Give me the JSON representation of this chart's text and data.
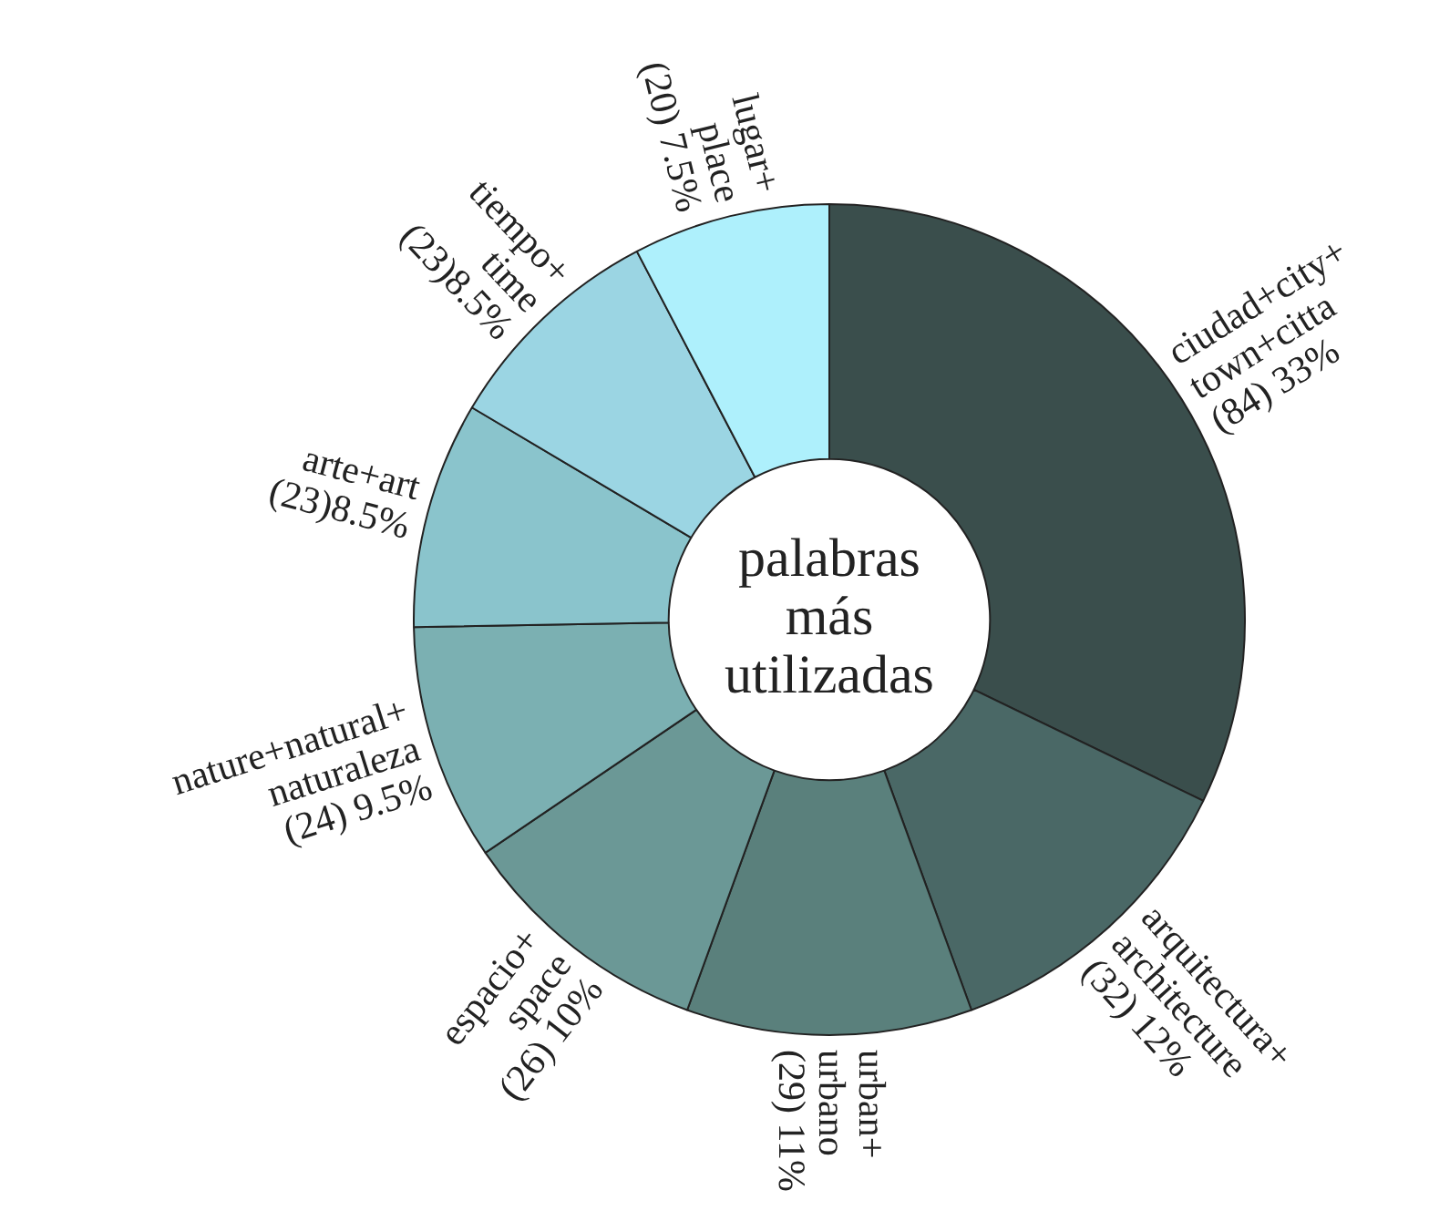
{
  "chart_data": {
    "type": "donut",
    "title": "palabras más utilizadas",
    "categories": [
      "ciudad+city+\ntown+citta",
      "arquitectura+\narchitecture",
      "urban+\nurbano",
      "espacio+\nspace",
      "nature+natural+\nnaturaleza",
      "arte+art",
      "tiempo+\ntime",
      "lugar+\nplace"
    ],
    "values": [
      84,
      32,
      29,
      26,
      24,
      23,
      23,
      20
    ],
    "value_labels": [
      "(84) 33%",
      "(32) 12%",
      "(29) 11%",
      "(26) 10%",
      "(24) 9.5%",
      "(23)8.5%",
      "(23)8.5%",
      "(20) 7.5%"
    ],
    "colors": [
      "#3a4e4c",
      "#4a6866",
      "#5a807c",
      "#6b9896",
      "#7bb0b2",
      "#8ac4cc",
      "#9bd5e3",
      "#aef0fc"
    ],
    "legend": false
  }
}
